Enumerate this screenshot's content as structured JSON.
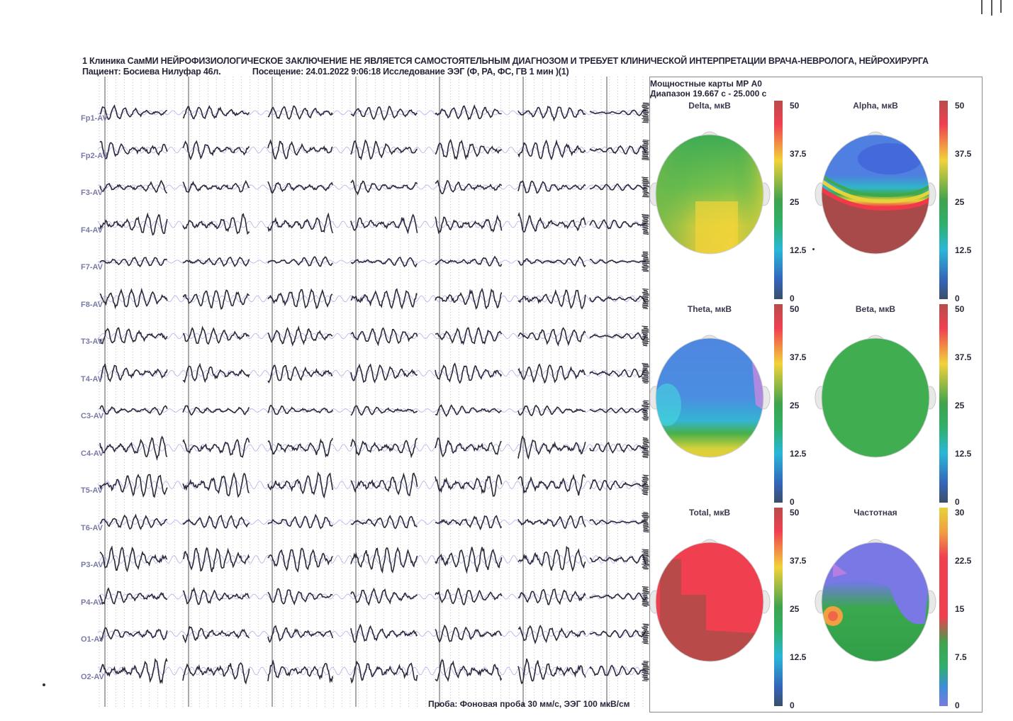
{
  "header": {
    "line1": "1 Клиника СамМИ НЕЙРОФИЗИОЛОГИЧЕСКОЕ ЗАКЛЮЧЕНИЕ НЕ ЯВЛЯЕТСЯ САМОСТОЯТЕЛЬНЫМ ДИАГНОЗОМ И ТРЕБУЕТ КЛИНИЧЕСКОЙ ИНТЕРПРЕТАЦИИ ВРАЧА-НЕВРОЛОГА, НЕЙРОХИРУРГА",
    "patient": "Пациент: Босиева Нилуфар 46л.",
    "visit": "Посещение: 24.01.2022 9:06:18 Исследование ЭЭГ (Ф, РА, ФС, ГВ 1 мин )(1)"
  },
  "channels": [
    "Fp1-AV",
    "Fp2-AV",
    "F3-AV",
    "F4-AV",
    "F7-AV",
    "F8-AV",
    "T3-AV",
    "T4-AV",
    "C3-AV",
    "C4-AV",
    "T5-AV",
    "T6-AV",
    "P3-AV",
    "P4-AV",
    "O1-AV",
    "O2-AV"
  ],
  "channel_amplitudes": [
    0.45,
    0.7,
    0.45,
    0.8,
    0.25,
    0.75,
    0.6,
    0.7,
    0.3,
    0.85,
    1.0,
    0.45,
    1.0,
    0.55,
    0.6,
    1.0
  ],
  "footer": "Проба: Фоновая проба 30 мм/с, ЭЭГ 100 мкВ/см",
  "maps": {
    "title": "Мощностные карты МР А0",
    "range": "Диапазон 19.667 с - 25.000 с",
    "items": [
      {
        "title": "Delta, мкВ",
        "scale": [
          "50",
          "37.5",
          "25",
          "12.5",
          "0"
        ]
      },
      {
        "title": "Alpha, мкВ",
        "scale": [
          "50",
          "37.5",
          "25",
          "12.5",
          "0"
        ]
      },
      {
        "title": "Theta, мкВ",
        "scale": [
          "50",
          "37.5",
          "25",
          "12.5",
          "0"
        ]
      },
      {
        "title": "Beta, мкВ",
        "scale": [
          "50",
          "37.5",
          "25",
          "12.5",
          "0"
        ]
      },
      {
        "title": "Total, мкВ",
        "scale": [
          "50",
          "37.5",
          "25",
          "12.5",
          "0"
        ]
      },
      {
        "title": "Частотная",
        "scale": [
          "30",
          "22.5",
          "15",
          "7.5",
          "0"
        ]
      }
    ]
  }
}
